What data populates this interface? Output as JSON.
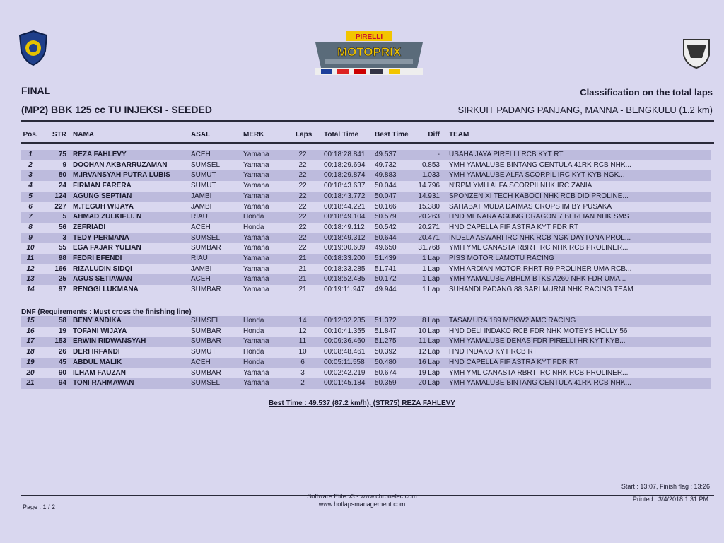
{
  "header": {
    "session": "FINAL",
    "class_name": "(MP2) BBK 125 cc TU INJEKSI - SEEDED",
    "classification": "Classification on the total laps",
    "circuit": "SIRKUIT PADANG PANJANG, MANNA - BENGKULU (1.2 km)",
    "event_logo_text": "PIRELLI MOTOPRIX"
  },
  "columns": [
    "Pos.",
    "STR",
    "NAMA",
    "ASAL",
    "MERK",
    "Laps",
    "Total Time",
    "Best Time",
    "Diff",
    "TEAM"
  ],
  "results": [
    [
      "1",
      "75",
      "REZA FAHLEVY",
      "ACEH",
      "Yamaha",
      "22",
      "00:18:28.841",
      "49.537",
      "-",
      "USAHA JAYA PIRELLI RCB KYT RT"
    ],
    [
      "2",
      "9",
      "DOOHAN AKBARRUZAMAN",
      "SUMSEL",
      "Yamaha",
      "22",
      "00:18:29.694",
      "49.732",
      "0.853",
      "YMH YAMALUBE BINTANG CENTULA 41RK RCB NHK..."
    ],
    [
      "3",
      "80",
      "M.IRVANSYAH PUTRA LUBIS",
      "SUMUT",
      "Yamaha",
      "22",
      "00:18:29.874",
      "49.883",
      "1.033",
      "YMH YAMALUBE ALFA SCORPIL IRC KYT KYB NGK..."
    ],
    [
      "4",
      "24",
      "FIRMAN FARERA",
      "SUMUT",
      "Yamaha",
      "22",
      "00:18:43.637",
      "50.044",
      "14.796",
      "N'RPM YMH ALFA SCORPII NHK IRC ZANIA"
    ],
    [
      "5",
      "124",
      "AGUNG SEPTIAN",
      "JAMBI",
      "Yamaha",
      "22",
      "00:18:43.772",
      "50.047",
      "14.931",
      "SPONZEN XI TECH KABOCI NHK RCB DID PROLINE..."
    ],
    [
      "6",
      "227",
      "M.TEGUH WIJAYA",
      "JAMBI",
      "Yamaha",
      "22",
      "00:18:44.221",
      "50.166",
      "15.380",
      "SAHABAT MUDA DAIMAS CROPS IM BY PUSAKA"
    ],
    [
      "7",
      "5",
      "AHMAD ZULKIFLI. N",
      "RIAU",
      "Honda",
      "22",
      "00:18:49.104",
      "50.579",
      "20.263",
      "HND MENARA AGUNG DRAGON 7 BERLIAN NHK SMS"
    ],
    [
      "8",
      "56",
      "ZEFRIADI",
      "ACEH",
      "Honda",
      "22",
      "00:18:49.112",
      "50.542",
      "20.271",
      "HND CAPELLA FIF ASTRA KYT FDR RT"
    ],
    [
      "9",
      "3",
      "TEDY PERMANA",
      "SUMSEL",
      "Yamaha",
      "22",
      "00:18:49.312",
      "50.644",
      "20.471",
      "INDELA ASWARI IRC NHK RCB NGK DAYTONA PROL..."
    ],
    [
      "10",
      "55",
      "EGA FAJAR YULIAN",
      "SUMBAR",
      "Yamaha",
      "22",
      "00:19:00.609",
      "49.650",
      "31.768",
      "YMH YML CANASTA RBRT IRC NHK RCB PROLINER..."
    ],
    [
      "11",
      "98",
      "FEDRI EFENDI",
      "RIAU",
      "Yamaha",
      "21",
      "00:18:33.200",
      "51.439",
      "1 Lap",
      "PISS MOTOR LAMOTU RACING"
    ],
    [
      "12",
      "166",
      "RIZALUDIN SIDQI",
      "JAMBI",
      "Yamaha",
      "21",
      "00:18:33.285",
      "51.741",
      "1 Lap",
      "YMH ARDIAN MOTOR RHRT R9 PROLINER UMA RCB..."
    ],
    [
      "13",
      "25",
      "AGUS SETIAWAN",
      "ACEH",
      "Yamaha",
      "21",
      "00:18:52.435",
      "50.172",
      "1 Lap",
      "YMH YAMALUBE ABHLM BTKS A260 NHK FDR UMA..."
    ],
    [
      "14",
      "97",
      "RENGGI LUKMANA",
      "SUMBAR",
      "Yamaha",
      "21",
      "00:19:11.947",
      "49.944",
      "1 Lap",
      "SUHANDI PADANG 88 SARI MURNI NHK RACING TEAM"
    ]
  ],
  "dnf_label": "DNF (Requirements : Must cross the finishing line)",
  "dnf": [
    [
      "15",
      "58",
      "BENY ANDIKA",
      "SUMSEL",
      "Honda",
      "14",
      "00:12:32.235",
      "51.372",
      "8 Lap",
      "TASAMURA 189 MBKW2 AMC RACING"
    ],
    [
      "16",
      "19",
      "TOFANI WIJAYA",
      "SUMBAR",
      "Honda",
      "12",
      "00:10:41.355",
      "51.847",
      "10 Lap",
      "HND DELI INDAKO RCB FDR NHK MOTEYS HOLLY 56"
    ],
    [
      "17",
      "153",
      "ERWIN RIDWANSYAH",
      "SUMBAR",
      "Yamaha",
      "11",
      "00:09:36.460",
      "51.275",
      "11 Lap",
      "YMH YAMALUBE DENAS FDR PIRELLI HR KYT KYB..."
    ],
    [
      "18",
      "26",
      "DERI IRFANDI",
      "SUMUT",
      "Honda",
      "10",
      "00:08:48.461",
      "50.392",
      "12 Lap",
      "HND INDAKO KYT RCB RT"
    ],
    [
      "19",
      "45",
      "ABDUL MALIK",
      "ACEH",
      "Honda",
      "6",
      "00:05:11.558",
      "50.480",
      "16 Lap",
      "HND CAPELLA FIF ASTRA KYT FDR RT"
    ],
    [
      "20",
      "90",
      "ILHAM FAUZAN",
      "SUMBAR",
      "Yamaha",
      "3",
      "00:02:42.219",
      "50.674",
      "19 Lap",
      "YMH YML CANASTA RBRT IRC NHK RCB PROLINER..."
    ],
    [
      "21",
      "94",
      "TONI RAHMAWAN",
      "SUMSEL",
      "Yamaha",
      "2",
      "00:01:45.184",
      "50.359",
      "20 Lap",
      "YMH YAMALUBE BINTANG CENTULA 41RK RCB NHK..."
    ]
  ],
  "best_time": "Best Time : 49.537 (87.2 km/h), (STR75) REZA FAHLEVY",
  "footer": {
    "start_finish": "Start : 13:07, Finish flag : 13:26",
    "software": "Software Elite v3 - www.chronelec.com",
    "website": "www.hotlapsmanagement.com",
    "printed": "Printed : 3/4/2018 1:31 PM",
    "page": "Page : 1 / 2"
  },
  "colors": {
    "paper": "#d9d7ef",
    "stripe": "#bdbbdd",
    "logo_yellow": "#f2c500"
  }
}
